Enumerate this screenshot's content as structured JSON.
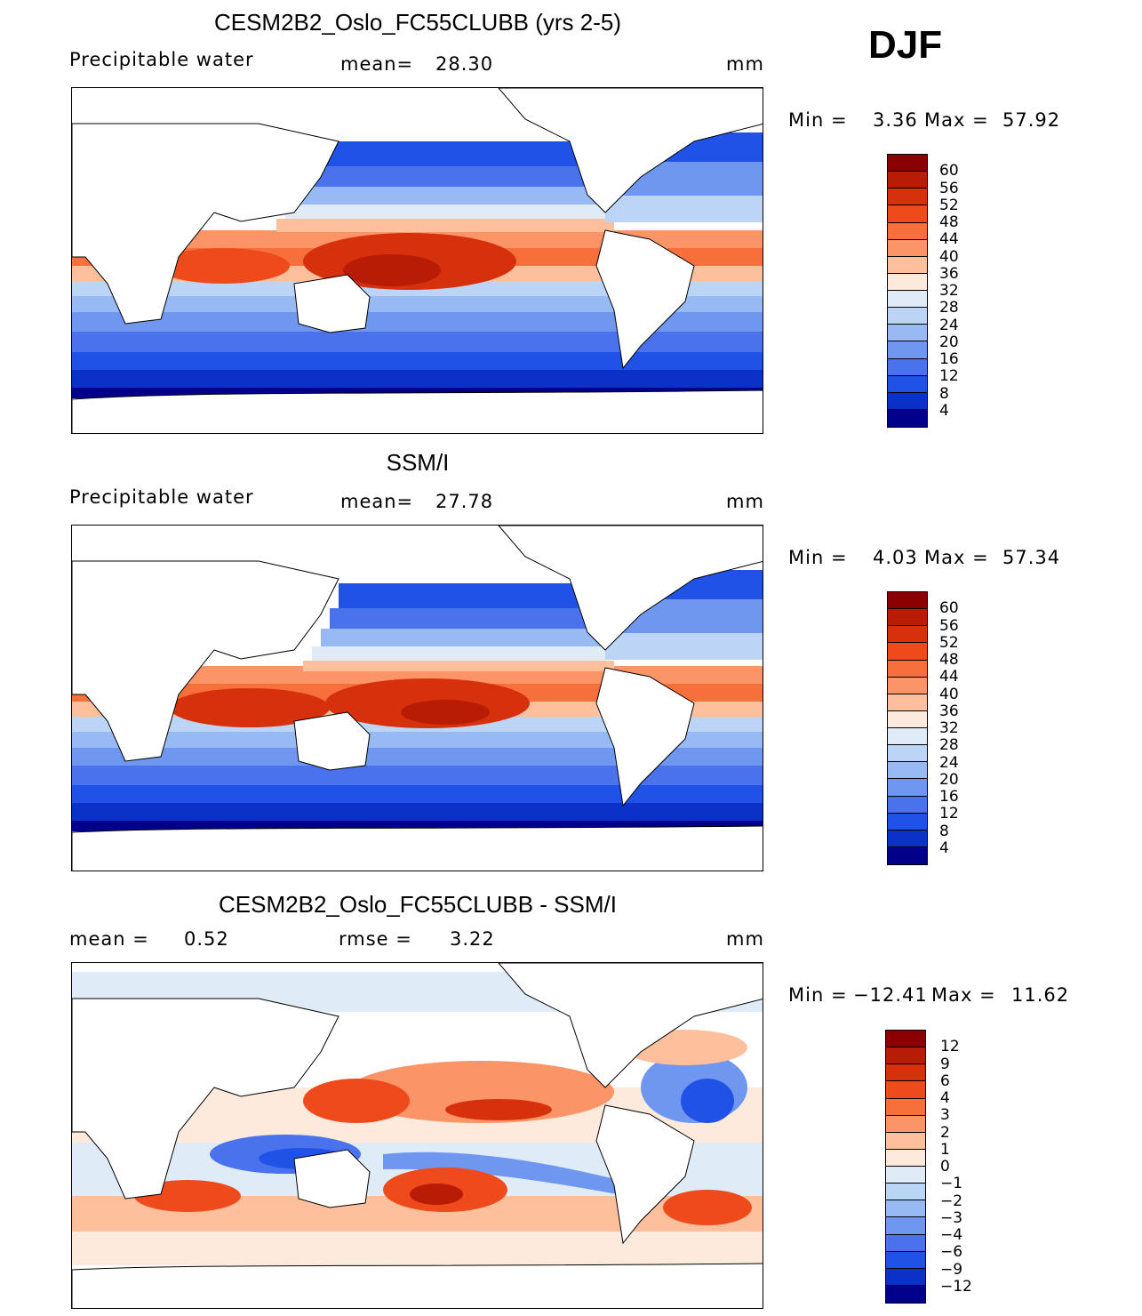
{
  "season": "DJF",
  "panels": [
    {
      "title": "CESM2B2_Oslo_FC55CLUBB (yrs 2-5)",
      "left_label": "Precipitable  water",
      "mid_label": "mean=",
      "mid_value": "28.30",
      "units": "mm",
      "min_label": "Min  =",
      "min_value": "3.36",
      "max_label": "Max  =",
      "max_value": "57.92",
      "colorbar_id": "abs"
    },
    {
      "title": "SSM/I",
      "left_label": "Precipitable  water",
      "mid_label": "mean=",
      "mid_value": "27.78",
      "units": "mm",
      "min_label": "Min  =",
      "min_value": "4.03",
      "max_label": "Max  =",
      "max_value": "57.34",
      "colorbar_id": "abs"
    },
    {
      "title": "CESM2B2_Oslo_FC55CLUBB - SSM/I",
      "left_label": "mean  =",
      "left_value": "0.52",
      "mid_label": "rmse  =",
      "mid_value": "3.22",
      "units": "mm",
      "min_label": "Min  =",
      "min_value": "−12.41",
      "max_label": "Max  =",
      "max_value": "11.62",
      "colorbar_id": "diff"
    }
  ],
  "colorbars": {
    "abs": {
      "levels": [
        "60",
        "56",
        "52",
        "48",
        "44",
        "40",
        "36",
        "32",
        "28",
        "24",
        "20",
        "16",
        "12",
        "8",
        "4"
      ],
      "colors": [
        "#8b0000",
        "#b81c04",
        "#d7300c",
        "#ef4a1c",
        "#f7703c",
        "#fb9466",
        "#fdbf9c",
        "#feeadc",
        "#dfecf8",
        "#bcd5f7",
        "#97baf4",
        "#6f97f0",
        "#4a72ec",
        "#2052e8",
        "#0b32c8",
        "#00008b"
      ]
    },
    "diff": {
      "levels": [
        "12",
        "9",
        "6",
        "4",
        "3",
        "2",
        "1",
        "0",
        "−1",
        "−2",
        "−3",
        "−4",
        "−6",
        "−9",
        "−12"
      ],
      "colors": [
        "#8b0000",
        "#b81c04",
        "#d7300c",
        "#ef4a1c",
        "#f7703c",
        "#fb9466",
        "#fdbf9c",
        "#feeadc",
        "#dfecf8",
        "#bcd5f7",
        "#97baf4",
        "#6f97f0",
        "#4a72ec",
        "#2052e8",
        "#0b32c8",
        "#00008b"
      ]
    }
  },
  "chart_data": [
    {
      "type": "heatmap",
      "title": "CESM2B2_Oslo_FC55CLUBB (yrs 2-5)",
      "variable": "Precipitable water",
      "units": "mm",
      "mean": 28.3,
      "min": 3.36,
      "max": 57.92,
      "contour_levels": [
        4,
        8,
        12,
        16,
        20,
        24,
        28,
        32,
        36,
        40,
        44,
        48,
        52,
        56,
        60
      ]
    },
    {
      "type": "heatmap",
      "title": "SSM/I",
      "variable": "Precipitable water",
      "units": "mm",
      "mean": 27.78,
      "min": 4.03,
      "max": 57.34,
      "contour_levels": [
        4,
        8,
        12,
        16,
        20,
        24,
        28,
        32,
        36,
        40,
        44,
        48,
        52,
        56,
        60
      ]
    },
    {
      "type": "heatmap",
      "title": "CESM2B2_Oslo_FC55CLUBB - SSM/I",
      "units": "mm",
      "mean": 0.52,
      "rmse": 3.22,
      "min": -12.41,
      "max": 11.62,
      "contour_levels": [
        -12,
        -9,
        -6,
        -4,
        -3,
        -2,
        -1,
        0,
        1,
        2,
        3,
        4,
        6,
        9,
        12
      ]
    }
  ]
}
